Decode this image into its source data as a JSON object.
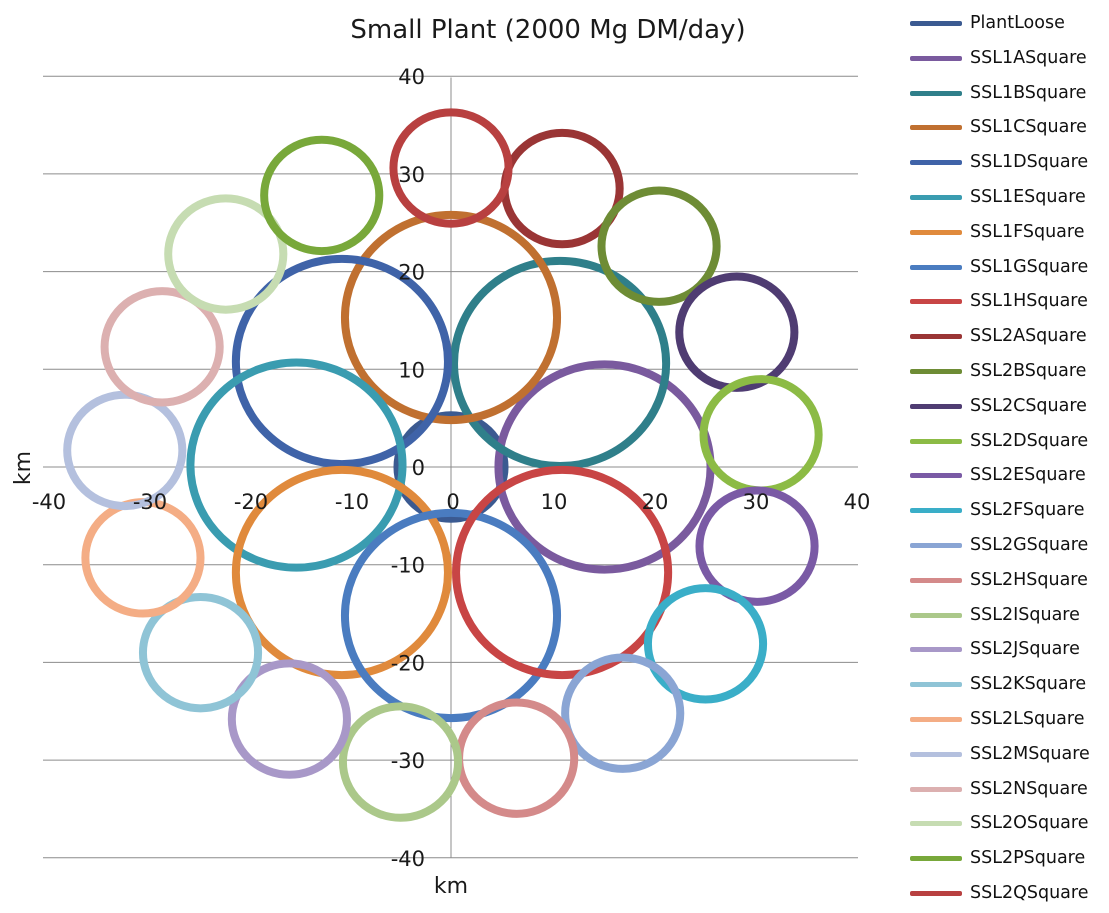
{
  "chart_data": {
    "type": "scatter",
    "title": "Small Plant (2000 Mg DM/day)",
    "xlabel": "km",
    "ylabel": "km",
    "xlim": [
      -40,
      40
    ],
    "ylim": [
      -40,
      40
    ],
    "xticks": [
      -40,
      -30,
      -20,
      -10,
      0,
      10,
      20,
      30,
      40
    ],
    "yticks": [
      -40,
      -30,
      -20,
      -10,
      0,
      10,
      20,
      30,
      40
    ],
    "grid": "horizontal",
    "legend_position": "right",
    "series": [
      {
        "name": "PlantLoose",
        "color": "#3b5a91",
        "cx": 0,
        "cy": 0,
        "r": 5.3
      },
      {
        "name": "SSL1ASquare",
        "color": "#7a5a9e",
        "cx": 15.2,
        "cy": 0,
        "r": 10.5
      },
      {
        "name": "SSL1BSquare",
        "color": "#2f7f8a",
        "cx": 10.8,
        "cy": 10.6,
        "r": 10.5
      },
      {
        "name": "SSL1CSquare",
        "color": "#c07030",
        "cx": 0,
        "cy": 15.3,
        "r": 10.5
      },
      {
        "name": "SSL1DSquare",
        "color": "#3f63a8",
        "cx": -10.8,
        "cy": 10.8,
        "r": 10.5
      },
      {
        "name": "SSL1ESquare",
        "color": "#3a9cb0",
        "cx": -15.3,
        "cy": 0.2,
        "r": 10.5
      },
      {
        "name": "SSL1FSquare",
        "color": "#e08a3c",
        "cx": -10.8,
        "cy": -10.8,
        "r": 10.5
      },
      {
        "name": "SSL1GSquare",
        "color": "#4a7cc0",
        "cx": 0,
        "cy": -15.2,
        "r": 10.5
      },
      {
        "name": "SSL1HSquare",
        "color": "#c84545",
        "cx": 11,
        "cy": -10.8,
        "r": 10.5
      },
      {
        "name": "SSL2ASquare",
        "color": "#9a3535",
        "cx": 11,
        "cy": 28.5,
        "r": 5.7
      },
      {
        "name": "SSL2BSquare",
        "color": "#6e8c35",
        "cx": 20.6,
        "cy": 22.6,
        "r": 5.7
      },
      {
        "name": "SSL2CSquare",
        "color": "#4f3c72",
        "cx": 28.3,
        "cy": 13.8,
        "r": 5.7
      },
      {
        "name": "SSL2DSquare",
        "color": "#8cbb45",
        "cx": 30.7,
        "cy": 3.3,
        "r": 5.7
      },
      {
        "name": "SSL2ESquare",
        "color": "#7a5aa5",
        "cx": 30.3,
        "cy": -8.1,
        "r": 5.7
      },
      {
        "name": "SSL2FSquare",
        "color": "#3aaec8",
        "cx": 25.2,
        "cy": -18.1,
        "r": 5.7
      },
      {
        "name": "SSL2GSquare",
        "color": "#8aa5d4",
        "cx": 17,
        "cy": -25.2,
        "r": 5.7
      },
      {
        "name": "SSL2HSquare",
        "color": "#d48a8a",
        "cx": 6.5,
        "cy": -29.8,
        "r": 5.7
      },
      {
        "name": "SSL2ISquare",
        "color": "#abc88a",
        "cx": -5,
        "cy": -30.2,
        "r": 5.7
      },
      {
        "name": "SSL2JSquare",
        "color": "#a898c8",
        "cx": -16,
        "cy": -25.8,
        "r": 5.7
      },
      {
        "name": "SSL2KSquare",
        "color": "#8fc4d6",
        "cx": -24.8,
        "cy": -19,
        "r": 5.7
      },
      {
        "name": "SSL2LSquare",
        "color": "#f4ad85",
        "cx": -30.5,
        "cy": -9.3,
        "r": 5.7
      },
      {
        "name": "SSL2MSquare",
        "color": "#b4c0de",
        "cx": -32.3,
        "cy": 1.7,
        "r": 5.7
      },
      {
        "name": "SSL2NSquare",
        "color": "#dcb0b0",
        "cx": -28.6,
        "cy": 12.3,
        "r": 5.7
      },
      {
        "name": "SSL2OSquare",
        "color": "#c6dcb2",
        "cx": -22.3,
        "cy": 21.8,
        "r": 5.7
      },
      {
        "name": "SSL2PSquare",
        "color": "#78a83a",
        "cx": -12.8,
        "cy": 27.8,
        "r": 5.7
      },
      {
        "name": "SSL2QSquare",
        "color": "#b84040",
        "cx": 0,
        "cy": 30.6,
        "r": 5.7
      }
    ]
  }
}
